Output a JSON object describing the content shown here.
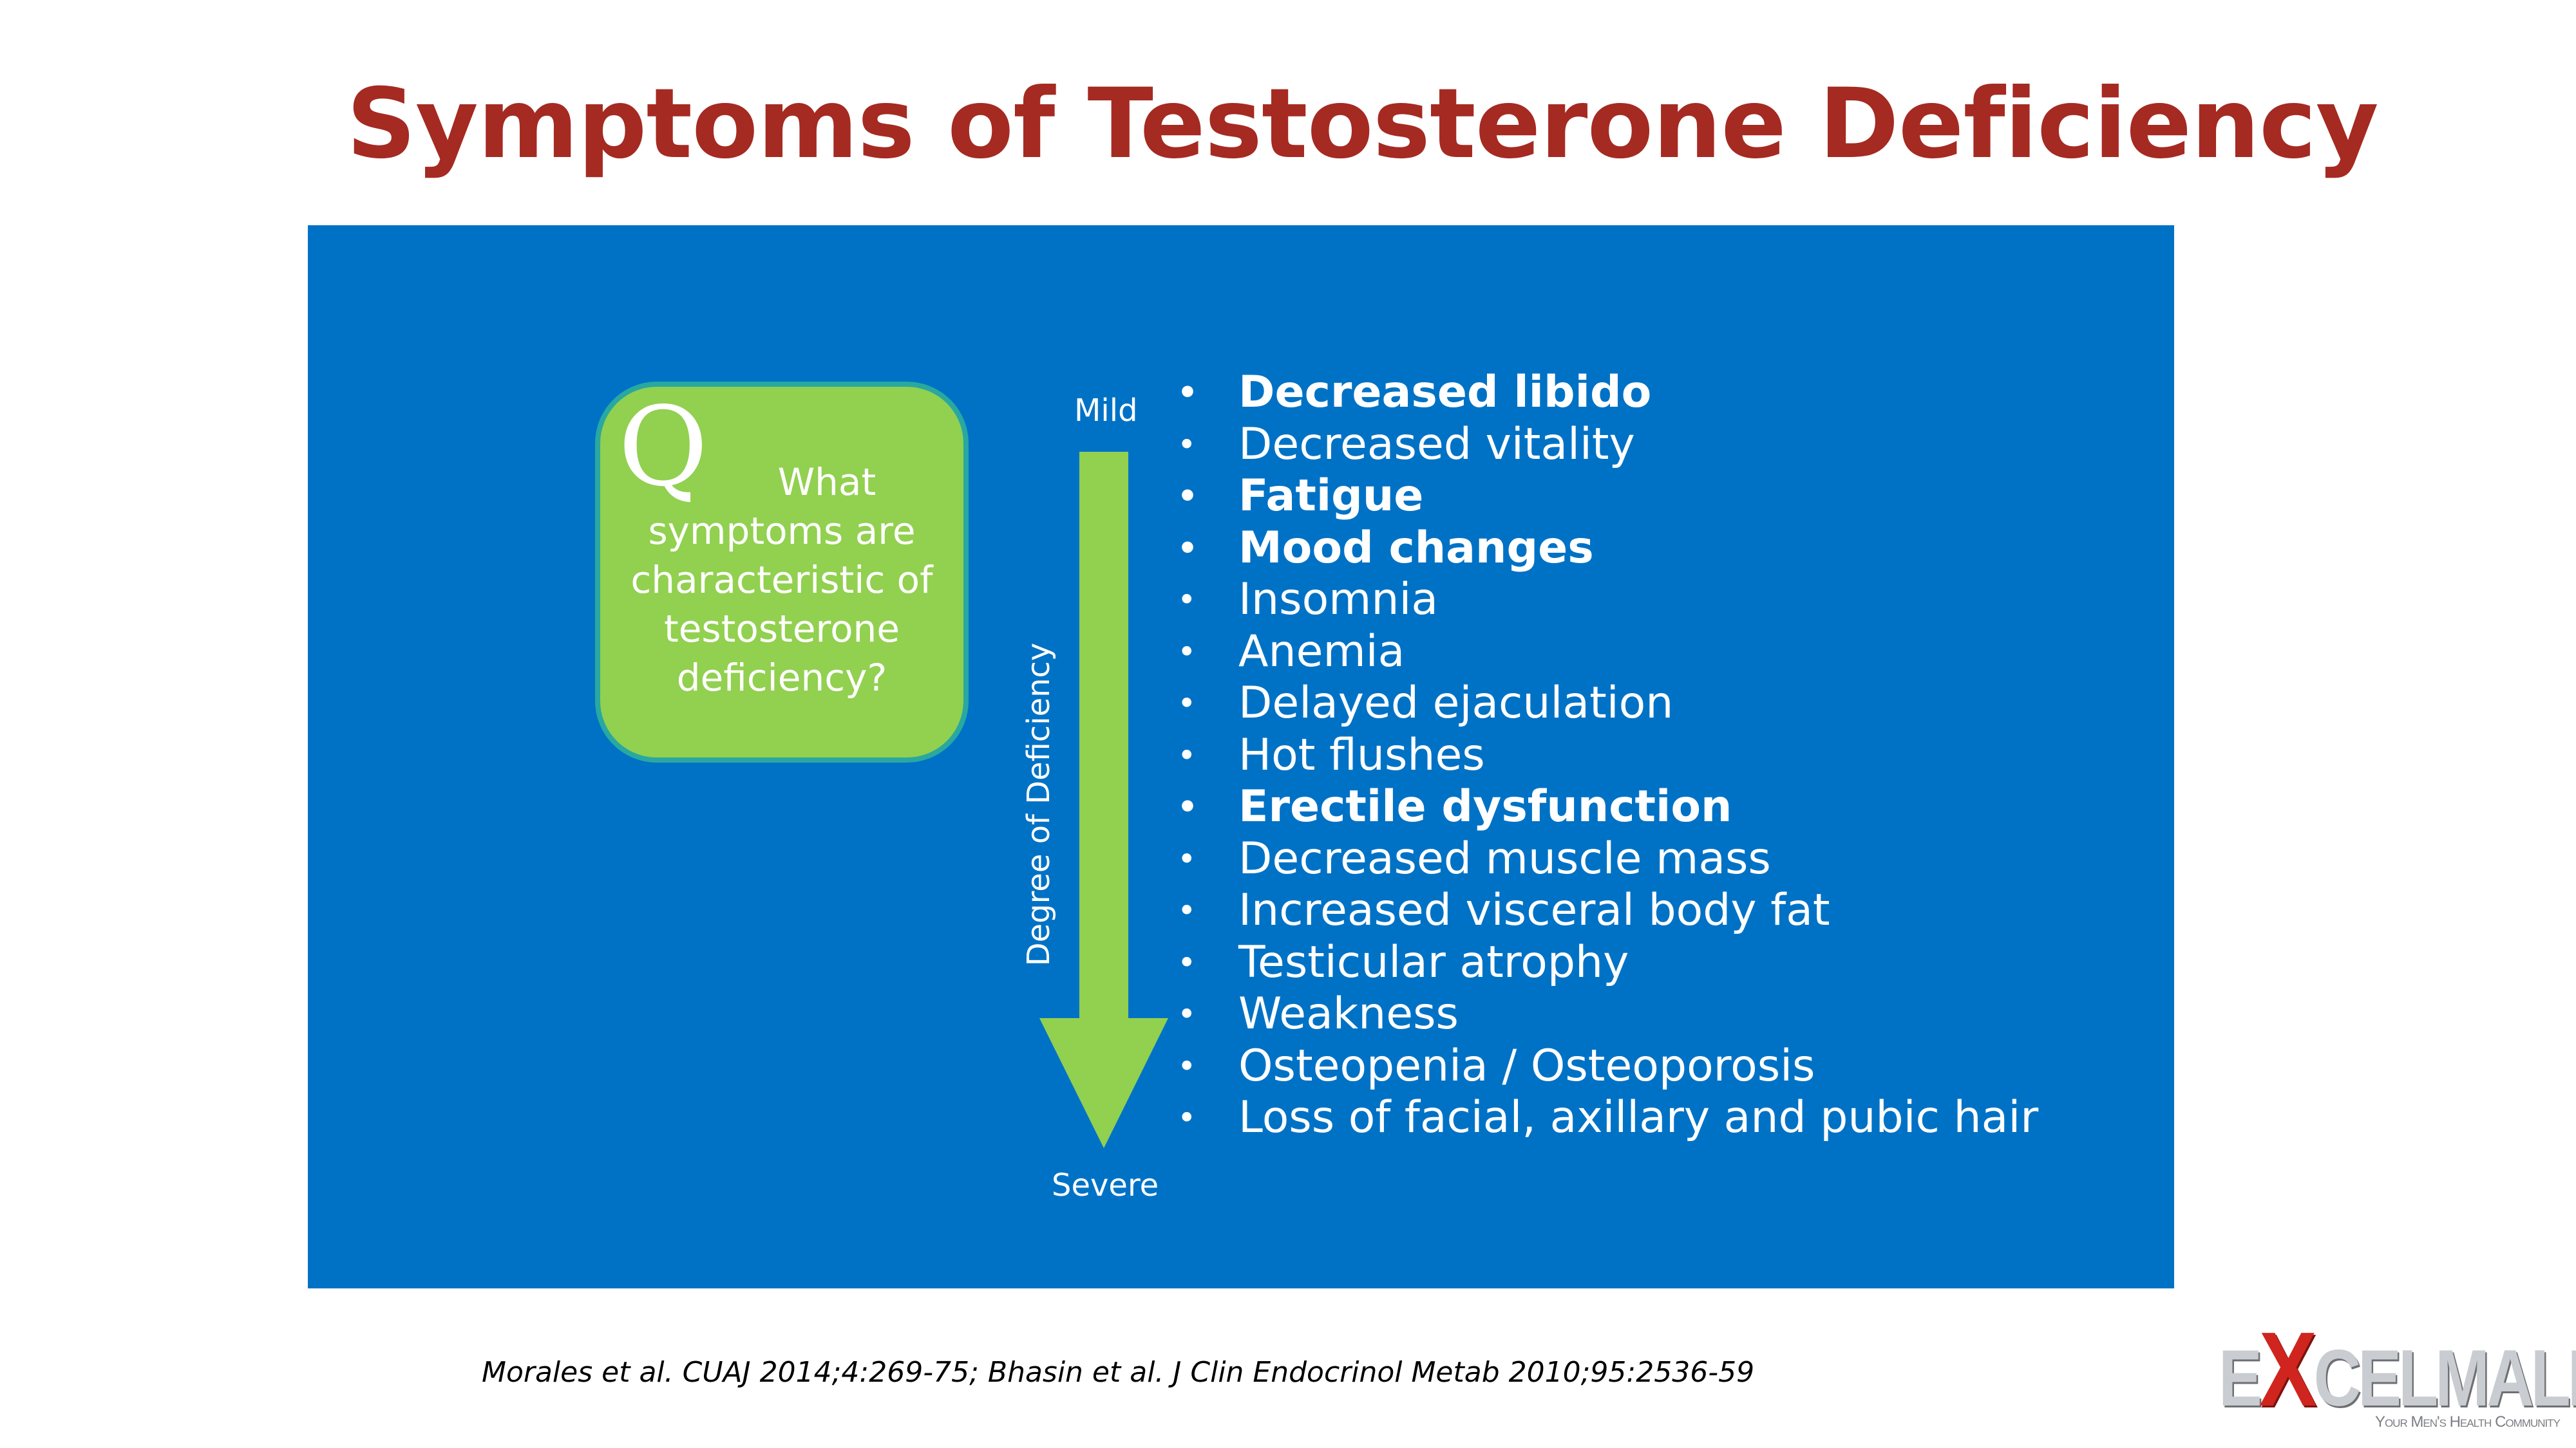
{
  "slide": {
    "title": "Symptoms of Testosterone Deficiency"
  },
  "question_box": {
    "letter": "Q",
    "text": "What symptoms are characteristic of testosterone deficiency?"
  },
  "severity_scale": {
    "top_label": "Mild",
    "bottom_label": "Severe",
    "axis_label": "Degree of Deficiency"
  },
  "symptoms": [
    {
      "label": "Decreased libido",
      "bold": true
    },
    {
      "label": "Decreased vitality",
      "bold": false
    },
    {
      "label": "Fatigue",
      "bold": true
    },
    {
      "label": "Mood changes",
      "bold": true
    },
    {
      "label": "Insomnia",
      "bold": false
    },
    {
      "label": "Anemia",
      "bold": false
    },
    {
      "label": "Delayed ejaculation",
      "bold": false
    },
    {
      "label": "Hot flushes",
      "bold": false
    },
    {
      "label": "Erectile dysfunction",
      "bold": true
    },
    {
      "label": "Decreased muscle mass",
      "bold": false
    },
    {
      "label": "Increased visceral body fat",
      "bold": false
    },
    {
      "label": "Testicular atrophy",
      "bold": false
    },
    {
      "label": "Weakness",
      "bold": false
    },
    {
      "label": "Osteopenia / Osteoporosis",
      "bold": false
    },
    {
      "label": "Loss of facial, axillary and pubic hair",
      "bold": false
    }
  ],
  "citation": "Morales et al. CUAJ 2014;4:269-75; Bhasin et al. J Clin Endocrinol Metab 2010;95:2536-59",
  "logo": {
    "letter_e": "E",
    "letter_x": "X",
    "rest": "CELMALE",
    "tagline": "Your Men's Health Community"
  },
  "colors": {
    "title": "#a52a22",
    "panel": "#0072c6",
    "accent_green": "#92d050",
    "box_border": "#29a8a0",
    "logo_red": "#d0251e"
  }
}
